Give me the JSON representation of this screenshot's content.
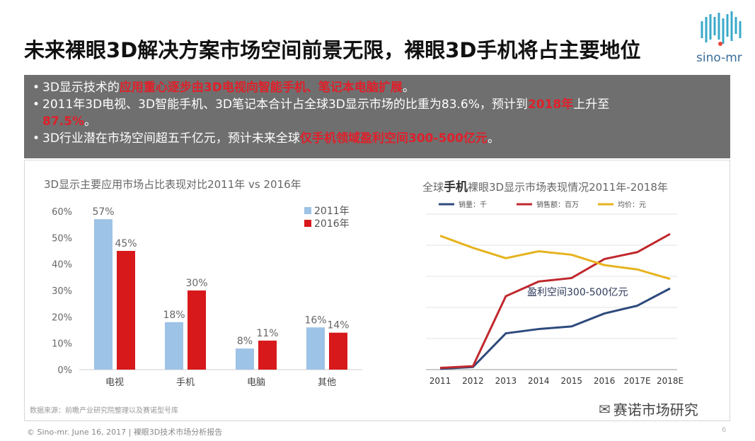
{
  "title": "未来裸眼3D解决方案市场空间前景无限，裸眼3D手机将占主要地位",
  "logo_text": "sino-mr",
  "bullets": [
    {
      "prefix": "3D显示技术的",
      "highlight": "应用重心逐步由3D电视向智能手机、笔记本电脑扩展",
      "suffix": "。"
    },
    {
      "prefix": "2011年3D电视、3D智能手机、3D笔记本合计占全球3D显示市场的比重为83.6%，预计到",
      "highlight": "2018年",
      "suffix": "上升至"
    },
    {
      "prefix": "",
      "highlight": "87.5%",
      "suffix": "。"
    },
    {
      "prefix": "3D行业潜在市场空间超五千亿元，预计未来全球",
      "highlight": "仅手机领域盈利空间300-500亿元",
      "suffix": "。"
    }
  ],
  "bar_chart_title": "3D显示主要应用市场占比表现对比2011年 vs 2016年",
  "line_chart_title_prefix": "全球",
  "line_chart_title_bold": "手机",
  "line_chart_title_suffix": "裸眼3D显示市场表现情况2011年-2018年",
  "source": "数据来源：前瞻产业研究院整理以及赛诺型号库",
  "footer": "© Sino-mr. June 16, 2017 | 裸眼3D技术市场分析报告",
  "page_number": "6",
  "wechat_name": "赛诺市场研究",
  "colors": {
    "blue_bar": "#9dc3e6",
    "red_bar": "#d7191c",
    "line_blue": "#2e4a7d",
    "line_red": "#c0282d",
    "line_yellow": "#e6b31e"
  },
  "chart_data": [
    {
      "type": "bar",
      "categories": [
        "电视",
        "手机",
        "电脑",
        "其他"
      ],
      "series": [
        {
          "name": "2011年",
          "values": [
            57,
            18,
            8,
            16
          ],
          "labels": [
            "57%",
            "18%",
            "8%",
            "16%"
          ]
        },
        {
          "name": "2016年",
          "values": [
            45,
            30,
            11,
            14
          ],
          "labels": [
            "45%",
            "30%",
            "11%",
            "14%"
          ]
        }
      ],
      "yticks": [
        "0%",
        "10%",
        "20%",
        "30%",
        "40%",
        "50%",
        "60%"
      ],
      "ylim": [
        0,
        60
      ],
      "legend": "top-right"
    },
    {
      "type": "line",
      "x": [
        "2011",
        "2012",
        "2013",
        "2014",
        "2015",
        "2016",
        "2017E",
        "2018E"
      ],
      "series": [
        {
          "name": "销量：千",
          "values": [
            1,
            3,
            42,
            47,
            50,
            65,
            74,
            94
          ]
        },
        {
          "name": "销售额：百万",
          "values": [
            2,
            4,
            85,
            102,
            106,
            128,
            136,
            157
          ]
        },
        {
          "name": "均价：元",
          "values": [
            155,
            141,
            129,
            137,
            133,
            121,
            116,
            105
          ]
        }
      ],
      "ylim": [
        0,
        180
      ],
      "annotation": "盈利空间300-500亿元",
      "legend": "top"
    }
  ]
}
